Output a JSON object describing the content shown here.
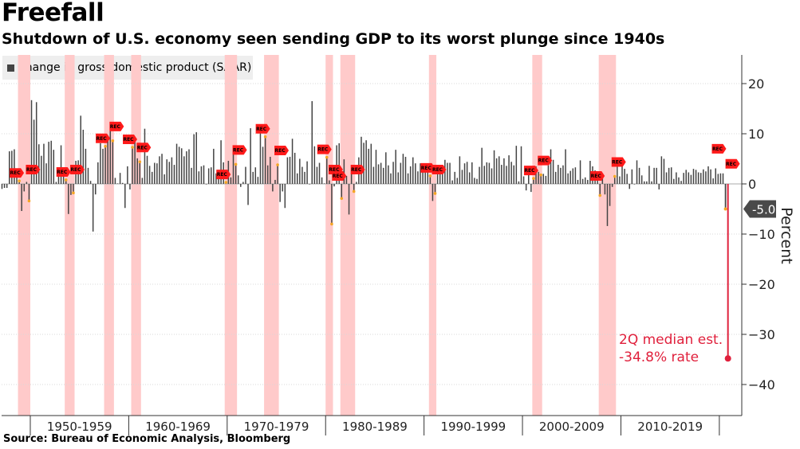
{
  "title": "Freefall",
  "subtitle": "Shutdown of U.S. economy seen sending GDP to its worst plunge since 1940s",
  "source": "Source:  Bureau of Economic Analysis, Bloomberg",
  "colors": {
    "bar": "#444444",
    "recession": "#ffcaca",
    "annotation": "#e0203c",
    "flag": "#ff1a1a"
  },
  "chart_data": {
    "type": "bar",
    "title": "Freefall",
    "legend": "Change in gross domestic product (SAAR)",
    "ylabel": "Percent",
    "yticks": [
      20,
      10,
      0,
      -10,
      -20,
      -30,
      -40
    ],
    "ylim": [
      -46,
      26
    ],
    "x_period": [
      "1947-Q1",
      "2020-Q2"
    ],
    "decade_labels": [
      "1950-1959",
      "1960-1969",
      "1970-1979",
      "1980-1989",
      "1990-1999",
      "2000-2009",
      "2010-2019"
    ],
    "last_value_label": "-5.0",
    "recession_flag_label": "REC",
    "recessions": [
      [
        "1948-Q4",
        "1949-Q4"
      ],
      [
        "1953-Q3",
        "1954-Q2"
      ],
      [
        "1957-Q3",
        "1958-Q2"
      ],
      [
        "1960-Q2",
        "1961-Q1"
      ],
      [
        "1969-Q4",
        "1970-Q4"
      ],
      [
        "1973-Q4",
        "1975-Q1"
      ],
      [
        "1980-Q1",
        "1980-Q3"
      ],
      [
        "1981-Q3",
        "1982-Q4"
      ],
      [
        "1990-Q3",
        "1991-Q1"
      ],
      [
        "2001-Q1",
        "2001-Q4"
      ],
      [
        "2007-Q4",
        "2009-Q2"
      ]
    ],
    "series": [
      {
        "name": "Change in gross domestic product (SAAR)",
        "start": "1947-Q1",
        "values": [
          -1.0,
          -0.8,
          -0.8,
          6.5,
          6.6,
          6.9,
          2.3,
          0.6,
          -5.4,
          -1.5,
          0.4,
          -3.4,
          16.7,
          12.8,
          16.3,
          7.9,
          5.6,
          8.0,
          4.1,
          8.4,
          8.6,
          6.8,
          0.4,
          1.6,
          7.7,
          2.9,
          0.8,
          -6.0,
          -2.2,
          -1.8,
          4.6,
          4.7,
          13.6,
          10.8,
          7.0,
          3.2,
          0.6,
          -9.5,
          -2.1,
          4.3,
          8.1,
          7.0,
          7.5,
          9.4,
          11.2,
          8.6,
          1.2,
          0.1,
          2.2,
          0.2,
          -4.8,
          3.5,
          -1.1,
          7.3,
          8.7,
          5.1,
          4.4,
          1.2,
          11.0,
          5.6,
          3.6,
          2.4,
          4.2,
          4.1,
          5.5,
          6.0,
          1.9,
          4.9,
          4.4,
          5.3,
          3.8,
          8.0,
          7.4,
          7.1,
          5.5,
          6.5,
          6.9,
          3.2,
          9.9,
          10.3,
          2.5,
          3.5,
          3.7,
          -0.1,
          3.1,
          3.3,
          7.0,
          2.1,
          2.4,
          8.7,
          4.3,
          0.3,
          4.6,
          1.3,
          6.4,
          3.9,
          1.7,
          -0.6,
          0.4,
          3.4,
          -4.2,
          11.1,
          2.4,
          3.3,
          1.4,
          11.3,
          7.4,
          9.4,
          3.7,
          5.4,
          -1.5,
          0.8,
          3.8,
          -3.6,
          -1.5,
          -4.8,
          5.3,
          5.4,
          9.0,
          6.2,
          2.1,
          5.0,
          3.4,
          2.4,
          4.5,
          -0.1,
          16.5,
          7.5,
          3.4,
          4.2,
          1.3,
          0.1,
          5.3,
          0.7,
          -8.0,
          -0.5,
          7.7,
          8.1,
          -2.9,
          4.9,
          1.6,
          -6.1,
          2.2,
          -1.5,
          0.4,
          5.3,
          9.4,
          8.2,
          8.7,
          7.0,
          8.0,
          3.4,
          6.8,
          3.9,
          4.2,
          3.2,
          6.3,
          3.7,
          2.1,
          4.4,
          6.8,
          2.3,
          4.2,
          6.0,
          5.4,
          2.1,
          3.5,
          5.3,
          4.1,
          2.5,
          4.1,
          3.5,
          3.9,
          2.7,
          1.6,
          -3.4,
          -1.9,
          3.1,
          2.1,
          2.0,
          4.8,
          4.2,
          4.2,
          0.7,
          2.4,
          1.2,
          5.5,
          2.8,
          4.1,
          4.4,
          2.3,
          4.3,
          1.2,
          1.0,
          3.4,
          7.2,
          3.6,
          4.3,
          4.2,
          3.1,
          6.7,
          5.1,
          5.5,
          3.8,
          5.1,
          3.6,
          5.7,
          4.4,
          3.7,
          7.6,
          0.5,
          7.5,
          1.5,
          -1.3,
          2.5,
          -1.6,
          1.1,
          3.5,
          2.4,
          1.8,
          2.0,
          1.6,
          3.7,
          6.9,
          4.8,
          2.4,
          3.8,
          3.2,
          3.7,
          6.9,
          2.1,
          2.6,
          3.1,
          3.3,
          0.8,
          4.7,
          1.0,
          1.3,
          0.8,
          4.6,
          3.5,
          2.7,
          2.4,
          -2.3,
          2.1,
          -2.1,
          -8.4,
          -4.4,
          -0.6,
          1.5,
          4.5,
          1.5,
          3.7,
          3.0,
          2.0,
          -1.0,
          2.9,
          -0.1,
          4.7,
          3.2,
          1.7,
          0.5,
          0.5,
          3.6,
          0.5,
          3.2,
          3.2,
          -1.1,
          5.5,
          5.0,
          2.3,
          3.2,
          3.3,
          1.0,
          2.3,
          1.3,
          0.6,
          2.2,
          2.8,
          2.3,
          1.8,
          3.0,
          2.8,
          2.3,
          2.2,
          2.9,
          2.5,
          3.5,
          2.9,
          1.1,
          3.1,
          2.0,
          2.1,
          2.1,
          -5.0,
          -34.8
        ]
      }
    ],
    "annotation": {
      "text_lines": [
        "2Q median est.",
        "-34.8% rate"
      ],
      "period": "2020-Q2",
      "value": -34.8
    }
  }
}
